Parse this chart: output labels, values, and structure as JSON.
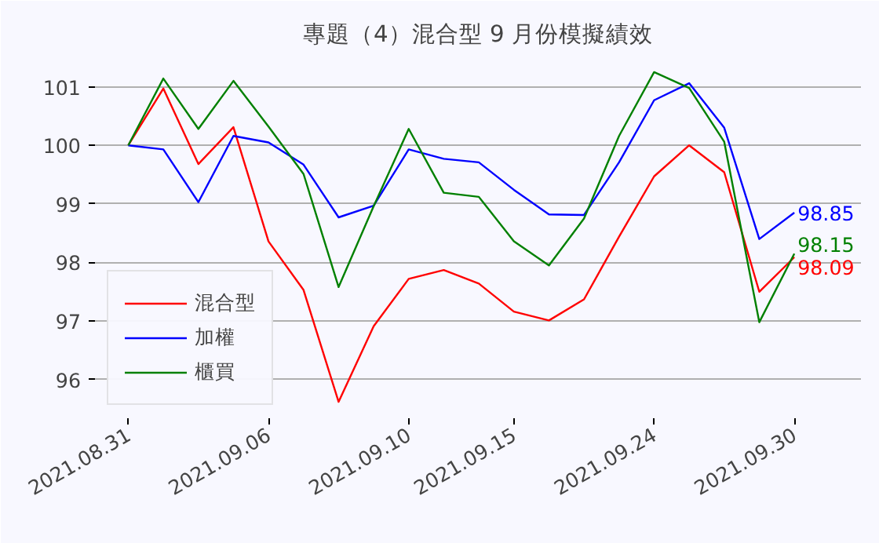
{
  "chart_data": {
    "type": "line",
    "title": "專題（4）混合型 9 月份模擬績效",
    "categories": [
      "2021.08.31",
      null,
      null,
      null,
      "2021.09.06",
      null,
      null,
      null,
      "2021.09.10",
      null,
      null,
      "2021.09.15",
      null,
      null,
      null,
      "2021.09.24",
      null,
      null,
      null,
      "2021.09.30"
    ],
    "series": [
      {
        "name": "混合型",
        "color": "#ff0000",
        "values": [
          100,
          100.97,
          99.68,
          100.31,
          98.36,
          97.53,
          95.62,
          96.91,
          97.72,
          97.87,
          97.64,
          97.16,
          97.01,
          97.37,
          98.44,
          99.47,
          100.0,
          99.54,
          97.5,
          98.09
        ],
        "value_labels": [
          null,
          null,
          null,
          null,
          null,
          null,
          null,
          null,
          null,
          null,
          null,
          null,
          null,
          null,
          null,
          null,
          null,
          null,
          null,
          "98.09"
        ]
      },
      {
        "name": "加權",
        "color": "#0000ff",
        "values": [
          100,
          99.93,
          99.03,
          100.16,
          100.05,
          99.67,
          98.77,
          98.97,
          99.93,
          99.77,
          99.71,
          99.24,
          98.82,
          98.81,
          99.71,
          100.77,
          101.06,
          100.3,
          98.4,
          98.85
        ],
        "value_labels": [
          null,
          null,
          null,
          null,
          null,
          null,
          null,
          null,
          null,
          null,
          null,
          null,
          null,
          null,
          null,
          null,
          null,
          null,
          null,
          "98.85"
        ]
      },
      {
        "name": "櫃買",
        "color": "#008000",
        "values": [
          100,
          101.14,
          100.28,
          101.1,
          100.32,
          99.51,
          97.58,
          98.96,
          100.28,
          99.19,
          99.12,
          98.36,
          97.95,
          98.75,
          100.16,
          101.25,
          100.98,
          100.06,
          96.98,
          98.15
        ],
        "value_labels": [
          null,
          null,
          null,
          null,
          null,
          null,
          null,
          null,
          null,
          null,
          null,
          null,
          null,
          null,
          null,
          null,
          null,
          null,
          null,
          "98.15"
        ]
      }
    ],
    "ylim": [
      95.34,
      101.53
    ],
    "yticks": [
      96,
      97,
      98,
      99,
      100,
      101
    ],
    "grid": "y",
    "legend": "bottom left",
    "marker": "none",
    "line_style": "solid"
  }
}
